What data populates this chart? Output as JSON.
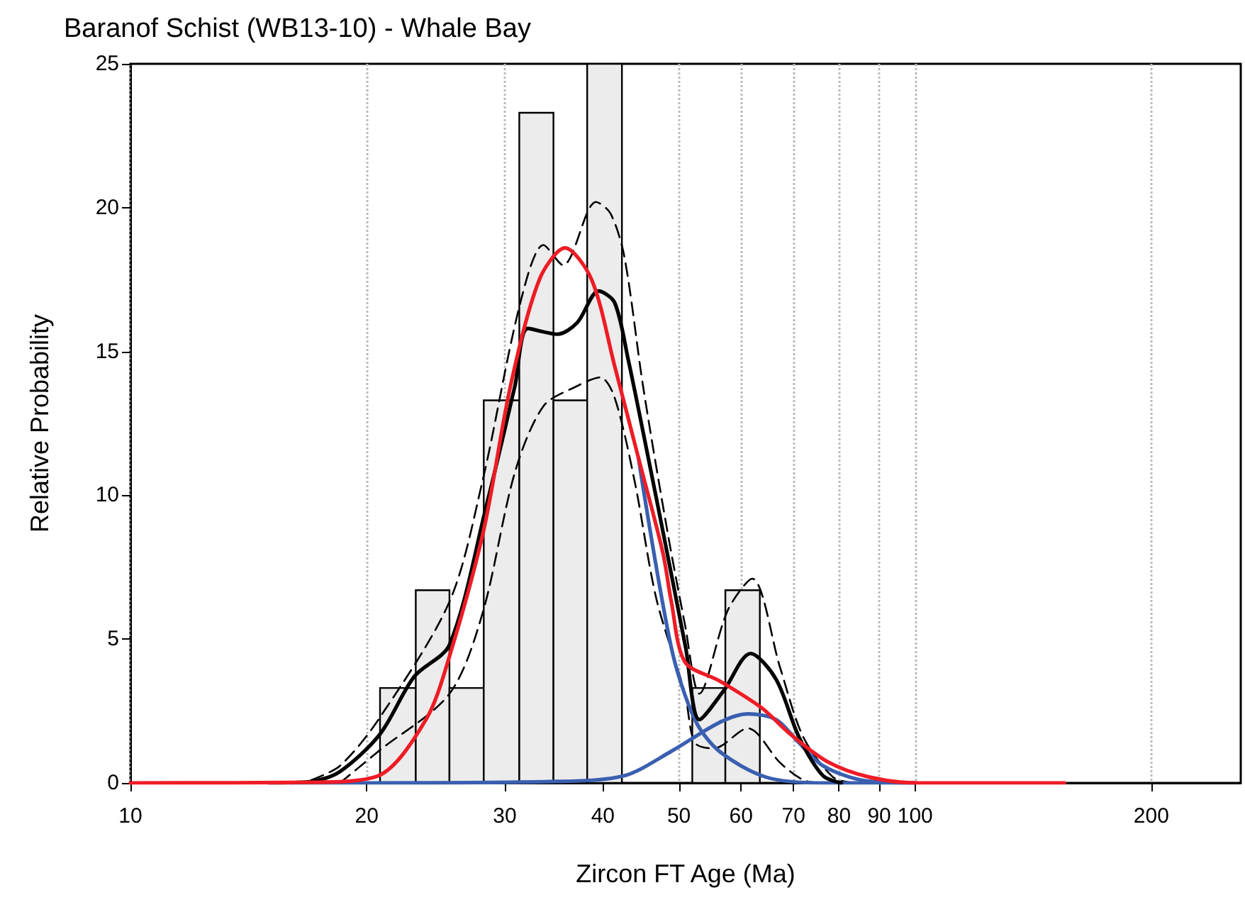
{
  "chart_data": {
    "type": "histogram",
    "title": "Baranof Schist (WB13-10) - Whale Bay",
    "xlabel": "Zircon FT Age (Ma)",
    "ylabel": "Relative Probability",
    "bins": [
      20.8,
      23.1,
      25.5,
      28.2,
      31.3,
      34.6,
      38.2,
      42.3,
      52.0,
      57.3,
      63.4
    ],
    "values": [
      3.3,
      6.7,
      3.3,
      13.3,
      23.3,
      13.3,
      25,
      0,
      3.3,
      6.7
    ],
    "color": "#ececec",
    "series": [
      {
        "type": "line",
        "color": "#000000",
        "line_style": "dashed",
        "x": [
          17,
          18.5,
          20.7,
          25.5,
          28.1,
          31.4,
          33.6,
          35.6,
          39.2,
          40.9,
          42.6,
          45.0,
          48.3,
          50.9,
          53.1,
          57.7,
          62.0,
          67.3,
          72.0,
          78.6,
          83.6
        ],
        "values": [
          0.1,
          0.6,
          2.2,
          6.3,
          10.5,
          16.7,
          18.7,
          18.0,
          20.2,
          19.8,
          18.3,
          13.8,
          8.8,
          5.5,
          3.1,
          6.0,
          7.1,
          4.0,
          1.6,
          0.2,
          0
        ]
      },
      {
        "type": "line",
        "color": "#000000",
        "line_style": "dashed",
        "x": [
          18.5,
          20.7,
          25.5,
          28.1,
          30.9,
          33.6,
          37.1,
          39.7,
          41.4,
          43.9,
          46.8,
          50.9,
          52.4,
          55.4,
          61.2,
          67.3,
          72.0,
          76.0
        ],
        "values": [
          0,
          1.1,
          3.1,
          5.9,
          10.8,
          13.1,
          13.8,
          14.1,
          13.4,
          10.5,
          6.4,
          3.1,
          1.4,
          1.2,
          1.9,
          0.7,
          0.1,
          0
        ]
      },
      {
        "type": "line",
        "color": "#3a5fb0",
        "line_style": "solid",
        "x": [
          16,
          20,
          35,
          42.6,
          48.9,
          56.3,
          61.2,
          66.5,
          71.1,
          76.3,
          85.4,
          100
        ],
        "values": [
          0,
          0,
          0.05,
          0.25,
          1.1,
          2.1,
          2.4,
          2.2,
          1.4,
          0.6,
          0.1,
          0
        ]
      },
      {
        "type": "line",
        "color": "#3a5fb0",
        "line_style": "solid",
        "x": [
          44.4,
          48.9,
          52.4,
          56.3,
          64.6,
          76.3,
          100
        ],
        "values": [
          11.3,
          4.7,
          2.2,
          1.1,
          0.2,
          0,
          0
        ]
      },
      {
        "type": "line",
        "color": "#000000",
        "line_style": "solid",
        "x": [
          15,
          17,
          18.5,
          20.8,
          23,
          25.5,
          28.4,
          30.9,
          32.1,
          35,
          37.1,
          39.5,
          41.4,
          43.1,
          45.7,
          48.3,
          51,
          53.1,
          57,
          61.7,
          66.5,
          71.1,
          76.3,
          80.5
        ],
        "values": [
          0,
          0.05,
          0.4,
          1.7,
          3.7,
          4.8,
          9.6,
          13.8,
          15.8,
          15.6,
          16,
          17.1,
          16.7,
          14.7,
          11.3,
          8,
          4.7,
          2.2,
          3.2,
          4.5,
          3.6,
          1.6,
          0.25,
          0
        ]
      },
      {
        "type": "line",
        "color": "#ee1c25",
        "line_style": "solid",
        "x": [
          10,
          17,
          20.7,
          23.8,
          25.5,
          28.2,
          30.5,
          33.2,
          35.8,
          38.7,
          41.4,
          44.4,
          47.7,
          48.9,
          50.9,
          56.3,
          63.8,
          69.3,
          77.3,
          87.5,
          100.8,
          155
        ],
        "values": [
          0,
          0.02,
          0.25,
          2.2,
          4.4,
          8.8,
          13.8,
          17.5,
          18.6,
          17.5,
          14.5,
          11.3,
          8.0,
          6.3,
          4.2,
          3.55,
          2.6,
          1.7,
          0.74,
          0.2,
          0,
          0
        ]
      }
    ],
    "log": "x",
    "marker": "none",
    "grid": "x",
    "xlim": [
      10,
      260
    ],
    "xticks": [
      10,
      20,
      30,
      40,
      50,
      60,
      70,
      80,
      90,
      100,
      200
    ],
    "ylim": [
      0,
      25
    ],
    "yticks": [
      0,
      5,
      10,
      15,
      20,
      25
    ]
  }
}
